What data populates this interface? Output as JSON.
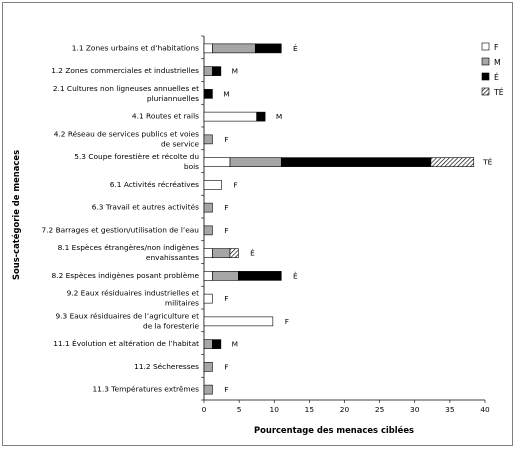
{
  "chart_data": {
    "type": "bar",
    "stacked": true,
    "orientation": "horizontal",
    "xlabel": "Pourcentage des menaces ciblées",
    "ylabel": "Sous-catégorie de menaces",
    "xlim": [
      0,
      40
    ],
    "xticks": [
      0,
      5,
      10,
      15,
      20,
      25,
      30,
      35,
      40
    ],
    "grid": false,
    "legend_position": "right",
    "categories": [
      [
        "1.1 Zones urbains et d’habitations"
      ],
      [
        "1.2 Zones commerciales et industrielles"
      ],
      [
        "2.1 Cultures non ligneuses annuelles et",
        "pluriannuelles"
      ],
      [
        "4.1 Routes et rails"
      ],
      [
        "4.2 Réseau de services publics et voies",
        "de service"
      ],
      [
        "5.3 Coupe forestière et récolte du",
        "bois"
      ],
      [
        "6.1 Activités récréatives"
      ],
      [
        "6.3 Travail et autres activités"
      ],
      [
        "7.2 Barrages et gestion/utilisation de l’eau"
      ],
      [
        "8.1 Espèces étrangères/non indigènes",
        "envahissantes"
      ],
      [
        "8.2 Espèces indigènes posant problème"
      ],
      [
        "9.2 Eaux résiduaires industrielles et",
        "militaires"
      ],
      [
        "9.3 Eaux résiduaires de l’agriculture et",
        "de la foresterie"
      ],
      [
        "11.1 Évolution et altération de l’habitat"
      ],
      [
        "11.2 Sécheresses"
      ],
      [
        "11.3 Températures extrêmes"
      ]
    ],
    "series": [
      {
        "name": "F",
        "color": "#ffffff",
        "pattern": "none",
        "values": [
          1.2,
          0,
          0,
          7.5,
          0,
          3.7,
          2.5,
          0,
          0,
          1.2,
          1.2,
          1.2,
          9.8,
          0,
          0,
          0
        ]
      },
      {
        "name": "M",
        "color": "#a6a6a6",
        "pattern": "none",
        "values": [
          6.1,
          1.2,
          0,
          0,
          1.2,
          7.3,
          0,
          1.2,
          1.2,
          2.5,
          3.7,
          0,
          0,
          1.2,
          1.2,
          1.2
        ]
      },
      {
        "name": "É",
        "color": "#000000",
        "pattern": "none",
        "values": [
          3.7,
          1.2,
          1.2,
          1.2,
          0,
          21.3,
          0,
          0,
          0,
          0,
          6.1,
          0,
          0,
          1.2,
          0,
          0
        ]
      },
      {
        "name": "TÉ",
        "color": "#ffffff",
        "pattern": "diagonal-hatch",
        "values": [
          0,
          0,
          0,
          0,
          0,
          6.1,
          0,
          0,
          0,
          1.2,
          0,
          0,
          0,
          0,
          0,
          0
        ]
      }
    ],
    "bar_labels": [
      "É",
      "M",
      "M",
      "M",
      "F",
      "TÉ",
      "F",
      "F",
      "F",
      "É",
      "É",
      "F",
      "F",
      "M",
      "F",
      "F"
    ]
  }
}
